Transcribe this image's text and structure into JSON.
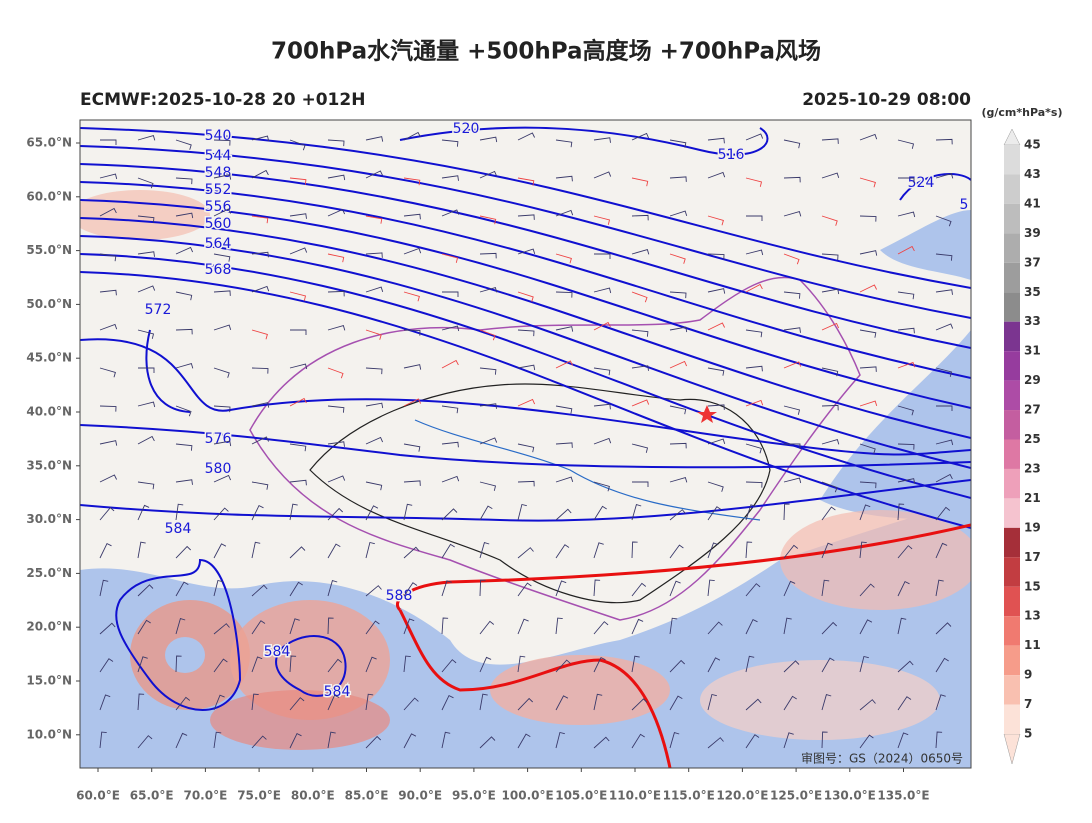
{
  "header": {
    "title": "700hPa水汽通量 +500hPa高度场 +700hPa风场",
    "left": "ECMWF:2025-10-28 20 +012H",
    "right": "2025-10-29 08:00"
  },
  "map": {
    "lat_labels": [
      "65.0°N",
      "60.0°N",
      "55.0°N",
      "50.0°N",
      "45.0°N",
      "40.0°N",
      "35.0°N",
      "30.0°N",
      "25.0°N",
      "20.0°N",
      "15.0°N",
      "10.0°N"
    ],
    "lon_labels": [
      "60.0°E",
      "65.0°E",
      "70.0°E",
      "75.0°E",
      "80.0°E",
      "85.0°E",
      "90.0°E",
      "95.0°E",
      "100.0°E",
      "105.0°E",
      "110.0°E",
      "115.0°E",
      "120.0°E",
      "125.0°E",
      "130.0°E",
      "135.0°E"
    ],
    "contour_labels": [
      "540",
      "544",
      "548",
      "552",
      "556",
      "560",
      "564",
      "568",
      "572",
      "576",
      "580",
      "584",
      "520",
      "516",
      "524",
      "5",
      "588",
      "584",
      "584"
    ],
    "credit": "审图号：GS（2024）0650号"
  },
  "colorbar": {
    "unit": "(g/cm*hPa*s)",
    "labels": [
      "45",
      "43",
      "41",
      "39",
      "37",
      "35",
      "33",
      "31",
      "29",
      "27",
      "25",
      "23",
      "21",
      "19",
      "17",
      "15",
      "13",
      "11",
      "9",
      "7",
      "5"
    ],
    "colors": [
      "#ececec",
      "#dcdcdc",
      "#cdcdcd",
      "#bdbdbd",
      "#adadad",
      "#9d9d9d",
      "#8c8c8c",
      "#7b3590",
      "#963c9e",
      "#ad4ca6",
      "#c45ea0",
      "#de78a4",
      "#eea0ba",
      "#f5c3cf",
      "#a52f39",
      "#c23d41",
      "#e05252",
      "#f07a70",
      "#f69c8a",
      "#f9c0b0",
      "#fce2d8"
    ]
  }
}
